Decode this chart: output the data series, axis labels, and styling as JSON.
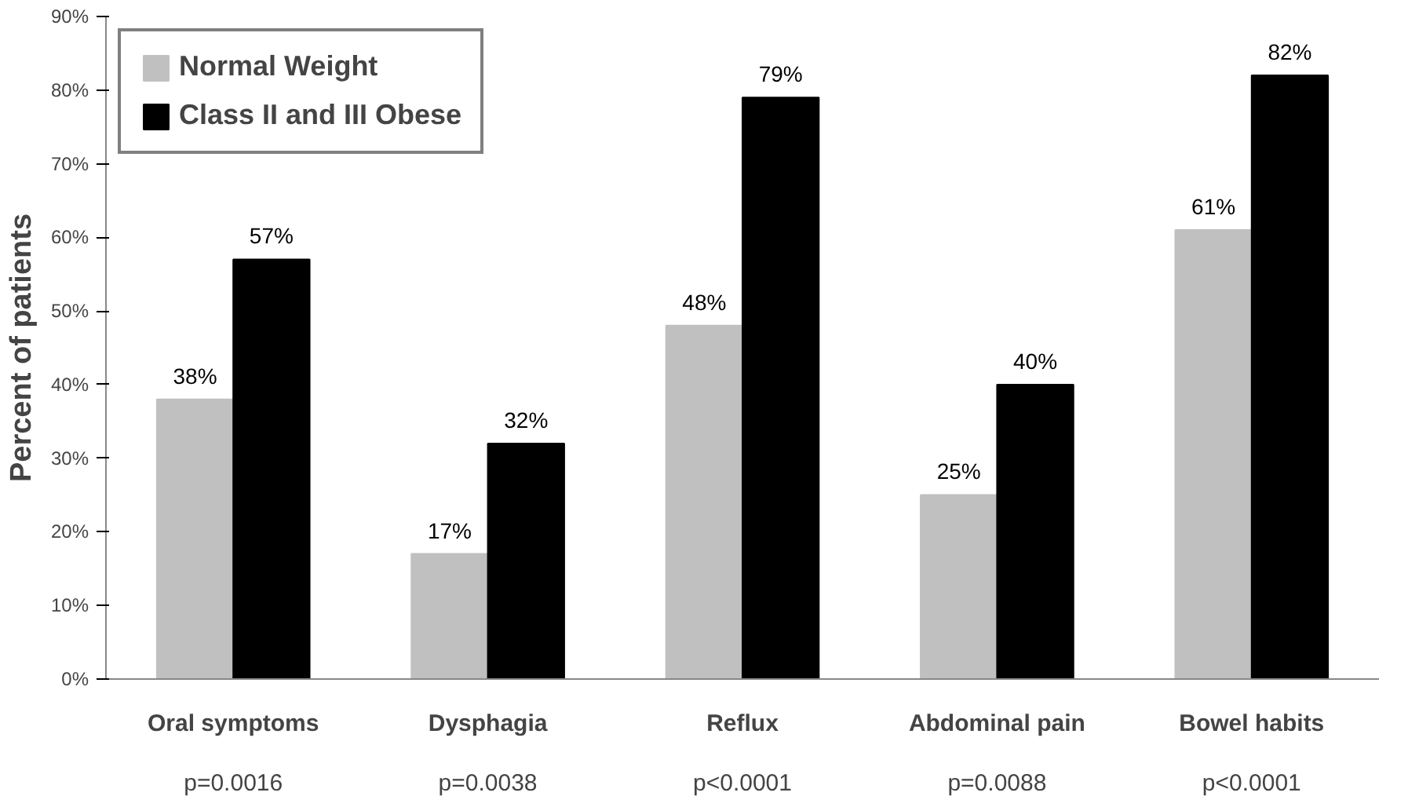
{
  "chart_data": {
    "type": "bar",
    "ylabel": "Percent of patients",
    "categories": [
      "Oral symptoms",
      "Dysphagia",
      "Reflux",
      "Abdominal pain",
      "Bowel habits"
    ],
    "series": [
      {
        "name": "Normal Weight",
        "color": "#c0c0c0",
        "values": [
          38,
          17,
          48,
          25,
          61
        ],
        "value_labels": [
          "38%",
          "17%",
          "48%",
          "25%",
          "61%"
        ]
      },
      {
        "name": "Class II and III Obese",
        "color": "#000000",
        "values": [
          57,
          32,
          79,
          40,
          82
        ],
        "value_labels": [
          "57%",
          "32%",
          "79%",
          "40%",
          "82%"
        ]
      }
    ],
    "ylim": [
      0,
      90
    ],
    "yticks": [
      {
        "value": 0,
        "label": "0%"
      },
      {
        "value": 10,
        "label": "10%"
      },
      {
        "value": 20,
        "label": "20%"
      },
      {
        "value": 30,
        "label": "30%"
      },
      {
        "value": 40,
        "label": "40%"
      },
      {
        "value": 50,
        "label": "50%"
      },
      {
        "value": 60,
        "label": "60%"
      },
      {
        "value": 70,
        "label": "70%"
      },
      {
        "value": 80,
        "label": "80%"
      },
      {
        "value": 90,
        "label": "90%"
      }
    ],
    "annotations": [
      "p=0.0016",
      "p=0.0038",
      "p<0.0001",
      "p=0.0088",
      "p<0.0001"
    ],
    "grid": false,
    "legend": "top left"
  }
}
